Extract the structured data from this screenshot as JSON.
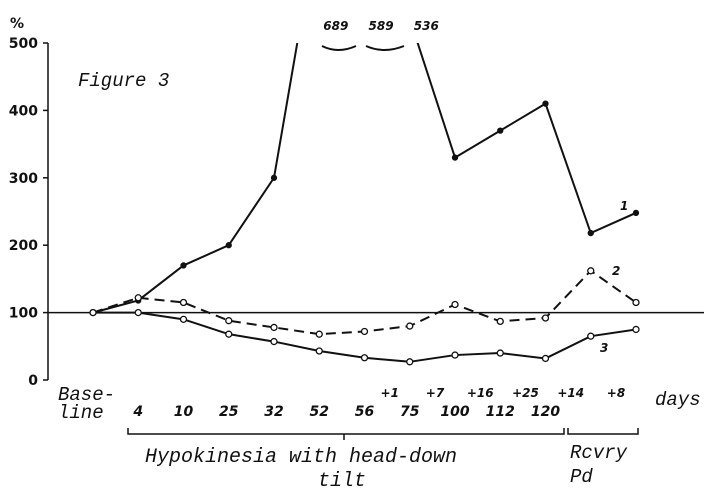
{
  "chart_data": {
    "type": "line",
    "y_label": "%",
    "annotation": "Figure 3",
    "baseline_label": [
      "Base-",
      "line"
    ],
    "categories": [
      null,
      "4",
      "10",
      "25",
      "32",
      "52",
      "56",
      "75",
      "100",
      "112",
      "120",
      null,
      null
    ],
    "upper_labels": [
      null,
      null,
      null,
      null,
      null,
      null,
      null,
      "+1",
      "+7",
      "+16",
      "+25",
      "+14",
      "+8"
    ],
    "x_unit": "days",
    "period_labels": [
      [
        "Hypokinesia with head-down",
        "tilt"
      ],
      [
        "Rcvry",
        "Pd"
      ]
    ],
    "reference_line": 100,
    "ylim": [
      0,
      500
    ],
    "yticks": [
      0,
      100,
      200,
      300,
      400,
      500
    ],
    "series": [
      {
        "name": "1",
        "color": "#111",
        "dash": false,
        "values": [
          100,
          118,
          170,
          200,
          300,
          689,
          589,
          536,
          330,
          370,
          410,
          218,
          248
        ],
        "value_labels": [
          null,
          null,
          null,
          null,
          null,
          "689",
          "589",
          "536",
          null,
          null,
          null,
          null,
          null
        ]
      },
      {
        "name": "2",
        "color": "#111",
        "dash": true,
        "values": [
          100,
          122,
          115,
          88,
          78,
          68,
          72,
          80,
          112,
          87,
          92,
          162,
          115
        ]
      },
      {
        "name": "3",
        "color": "#111",
        "dash": false,
        "values": [
          100,
          100,
          90,
          68,
          57,
          43,
          33,
          27,
          37,
          40,
          32,
          65,
          75
        ]
      }
    ]
  }
}
